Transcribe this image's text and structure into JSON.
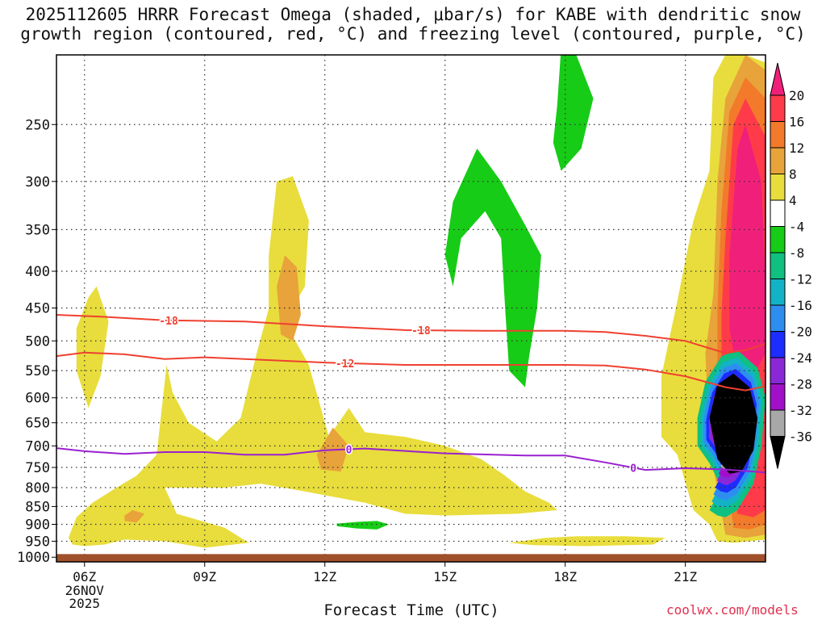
{
  "title_line1": "2025112605 HRRR Forecast Omega (shaded, μbar/s) for KABE with dendritic snow",
  "title_line2": "growth region (contoured, red, °C) and freezing level (contoured, purple, °C)",
  "credit": "coolwx.com/models",
  "chart_data": {
    "type": "heatmap",
    "xlabel": "Forecast Time (UTC)",
    "ylabel": "",
    "x_ticks": [
      {
        "label": "06Z",
        "sub": [
          "26NOV",
          "2025"
        ],
        "hour": 6
      },
      {
        "label": "09Z",
        "sub": [],
        "hour": 9
      },
      {
        "label": "12Z",
        "sub": [],
        "hour": 12
      },
      {
        "label": "15Z",
        "sub": [],
        "hour": 15
      },
      {
        "label": "18Z",
        "sub": [],
        "hour": 18
      },
      {
        "label": "21Z",
        "sub": [],
        "hour": 21
      }
    ],
    "xlim": [
      5.3,
      23
    ],
    "y_ticks": [
      250,
      300,
      350,
      400,
      450,
      500,
      550,
      600,
      650,
      700,
      750,
      800,
      850,
      900,
      950,
      1000
    ],
    "y_scale": "log-pressure (reversed)",
    "ylim": [
      1015,
      200
    ],
    "grid": true,
    "colorbar": {
      "labels": [
        "20",
        "16",
        "12",
        "8",
        "4",
        "-4",
        "-8",
        "-12",
        "-16",
        "-20",
        "-24",
        "-28",
        "-32",
        "-36"
      ],
      "colors": [
        "#ff3b4a",
        "#f27a2a",
        "#e8a33a",
        "#e8dd3c",
        "#ffffff",
        "#16cc16",
        "#0fc080",
        "#14b2c6",
        "#2e8ef0",
        "#1d2cff",
        "#8a28d8",
        "#a010c8",
        "#a8a8a8",
        "#000000"
      ],
      "top_color": "#f0207a"
    },
    "omega_regions": [
      {
        "level": 4,
        "color": "#e8dd3c",
        "name": "main-yellow"
      },
      {
        "level": 4,
        "color": "#e8dd3c",
        "name": "upper-yellow-0630"
      },
      {
        "level": 4,
        "color": "#e8dd3c",
        "name": "upper-yellow-11z"
      },
      {
        "level": 4,
        "color": "#e8dd3c",
        "name": "low-yellow-18z"
      },
      {
        "level": 4,
        "color": "#e8dd3c",
        "name": "east-yellow-22z"
      },
      {
        "level": 8,
        "color": "#e8a33a",
        "name": "orange-11z"
      },
      {
        "level": 8,
        "color": "#e8a33a",
        "name": "orange-12z"
      },
      {
        "level": 8,
        "color": "#e8a33a",
        "name": "orange-07z"
      },
      {
        "level": 8,
        "color": "#e8a33a",
        "name": "orange-22z"
      },
      {
        "level": 12,
        "color": "#f27a2a",
        "name": "orange-22z-inner"
      },
      {
        "level": 16,
        "color": "#ff3b4a",
        "name": "red-22z"
      },
      {
        "level": 20,
        "color": "#f0207a",
        "name": "pink-22z"
      },
      {
        "level": -4,
        "color": "#16cc16",
        "name": "green-upper-17z"
      },
      {
        "level": -4,
        "color": "#16cc16",
        "name": "green-top-18z"
      },
      {
        "level": -4,
        "color": "#16cc16",
        "name": "green-low-13z"
      },
      {
        "level": -8,
        "color": "#0fc080",
        "name": "descent-ring"
      },
      {
        "level": -36,
        "color": "#000000",
        "name": "descent-core"
      }
    ],
    "contours": [
      {
        "label": "-18",
        "color": "#ef4030",
        "points": [
          [
            5.3,
            460
          ],
          [
            6.5,
            463
          ],
          [
            8,
            468
          ],
          [
            10,
            470
          ],
          [
            12,
            477
          ],
          [
            14,
            483
          ],
          [
            16,
            484
          ],
          [
            18,
            484
          ],
          [
            19,
            486
          ],
          [
            20,
            492
          ],
          [
            21,
            500
          ],
          [
            22,
            520
          ],
          [
            22.5,
            515
          ],
          [
            23,
            505
          ]
        ]
      },
      {
        "label": "-12",
        "color": "#ef4030",
        "points": [
          [
            5.3,
            525
          ],
          [
            6,
            519
          ],
          [
            7,
            522
          ],
          [
            8,
            530
          ],
          [
            9,
            527
          ],
          [
            10,
            530
          ],
          [
            12,
            536
          ],
          [
            14,
            540
          ],
          [
            16,
            540
          ],
          [
            18,
            540
          ],
          [
            19,
            541
          ],
          [
            20,
            548
          ],
          [
            21,
            560
          ],
          [
            22,
            580
          ],
          [
            22.5,
            586
          ],
          [
            23,
            578
          ]
        ]
      },
      {
        "label": "0",
        "color": "#9a20d0",
        "points": [
          [
            5.3,
            705
          ],
          [
            6,
            712
          ],
          [
            7,
            718
          ],
          [
            8,
            714
          ],
          [
            9,
            714
          ],
          [
            10,
            720
          ],
          [
            11,
            720
          ],
          [
            12,
            710
          ],
          [
            13,
            706
          ],
          [
            15,
            717
          ],
          [
            17,
            722
          ],
          [
            18,
            722
          ],
          [
            19,
            738
          ],
          [
            20,
            756
          ],
          [
            21,
            752
          ],
          [
            22,
            755
          ],
          [
            23,
            762
          ]
        ]
      }
    ],
    "ground": {
      "color": "#a0502a",
      "top_hpa": 990
    }
  }
}
